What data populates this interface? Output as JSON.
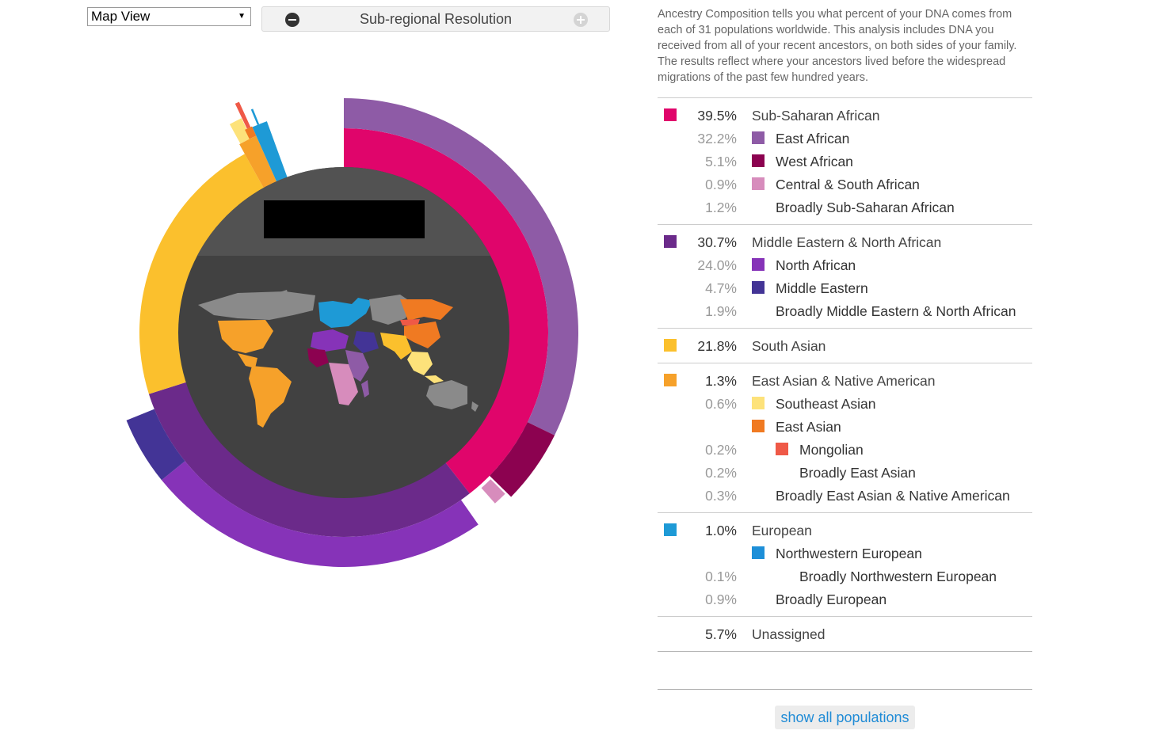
{
  "view_select": {
    "value": "Map View"
  },
  "resolution": {
    "label": "Sub-regional Resolution"
  },
  "description": "Ancestry Composition tells you what percent of your DNA comes from each of 31 populations worldwide. This analysis includes DNA you received from all of your recent ancestors, on both sides of your family. The results reflect where your ancestors lived before the widespread migrations of the past few hundred years.",
  "colors": {
    "sub_saharan": "#e0056b",
    "east_african": "#8e5ba6",
    "west_african": "#8c0250",
    "central_south_african": "#d78cbc",
    "mena": "#6b2a8a",
    "north_african": "#8633b8",
    "middle_eastern": "#433496",
    "south_asian": "#fbc02d",
    "east_asian_native_american": "#f6a12a",
    "southeast_asian": "#fde27a",
    "east_asian": "#f07a22",
    "mongolian": "#ef5947",
    "european": "#1e9ad6",
    "northwestern_european": "#1e8fd8",
    "center_dark": "#414141",
    "center_header": "#525252",
    "land_gray": "#8a8a8a"
  },
  "legend": [
    {
      "rows": [
        {
          "level": 0,
          "pct": "39.5%",
          "name": "Sub-Saharan African",
          "color": "#e0056b"
        },
        {
          "level": 1,
          "pct": "32.2%",
          "name": "East African",
          "color": "#8e5ba6"
        },
        {
          "level": 1,
          "pct": "5.1%",
          "name": "West African",
          "color": "#8c0250"
        },
        {
          "level": 1,
          "pct": "0.9%",
          "name": "Central & South African",
          "color": "#d78cbc"
        },
        {
          "level": 1,
          "pct": "1.2%",
          "name": "Broadly Sub-Saharan African",
          "color": ""
        }
      ]
    },
    {
      "rows": [
        {
          "level": 0,
          "pct": "30.7%",
          "name": "Middle Eastern & North African",
          "color": "#6b2a8a"
        },
        {
          "level": 1,
          "pct": "24.0%",
          "name": "North African",
          "color": "#8633b8"
        },
        {
          "level": 1,
          "pct": "4.7%",
          "name": "Middle Eastern",
          "color": "#433496"
        },
        {
          "level": 1,
          "pct": "1.9%",
          "name": "Broadly Middle Eastern & North African",
          "color": ""
        }
      ]
    },
    {
      "rows": [
        {
          "level": 0,
          "pct": "21.8%",
          "name": "South Asian",
          "color": "#fbc02d"
        }
      ]
    },
    {
      "rows": [
        {
          "level": 0,
          "pct": "1.3%",
          "name": "East Asian & Native American",
          "color": "#f6a12a"
        },
        {
          "level": 1,
          "pct": "0.6%",
          "name": "Southeast Asian",
          "color": "#fde27a"
        },
        {
          "level": 1,
          "pct": "",
          "name": "East Asian",
          "color": "#f07a22"
        },
        {
          "level": 2,
          "pct": "0.2%",
          "name": "Mongolian",
          "color": "#ef5947"
        },
        {
          "level": 2,
          "pct": "0.2%",
          "name": "Broadly East Asian",
          "color": ""
        },
        {
          "level": 1,
          "pct": "0.3%",
          "name": "Broadly East Asian & Native American",
          "color": ""
        }
      ]
    },
    {
      "rows": [
        {
          "level": 0,
          "pct": "1.0%",
          "name": "European",
          "color": "#1e9ad6"
        },
        {
          "level": 1,
          "pct": "",
          "name": "Northwestern European",
          "color": "#1e8fd8"
        },
        {
          "level": 2,
          "pct": "0.1%",
          "name": "Broadly Northwestern European",
          "color": ""
        },
        {
          "level": 1,
          "pct": "0.9%",
          "name": "Broadly European",
          "color": ""
        }
      ]
    },
    {
      "rows": [
        {
          "level": 0,
          "pct": "5.7%",
          "name": "Unassigned",
          "color": ""
        }
      ]
    }
  ],
  "show_all_label": "show all populations"
}
